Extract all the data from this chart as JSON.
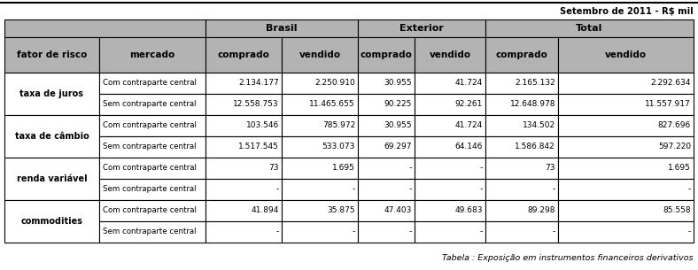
{
  "title_right": "Setembro de 2011 - RⓈ mil",
  "title_right2": "Setembro de 2011 - R$ mil",
  "caption": "Tabela : Exposição em instrumentos financeiros derivativos",
  "col1_header": "fator de risco",
  "col2_header": "mercado",
  "sub_col_headers": [
    "comprado",
    "vendido",
    "comprado",
    "vendido",
    "comprado",
    "vendido"
  ],
  "group_headers": [
    "Brasil",
    "Exterior",
    "Total"
  ],
  "rows": [
    {
      "fator": "taxa de juros",
      "sub_rows": [
        {
          "mercado": "Com contraparte central",
          "values": [
            "2.134.177",
            "2.250.910",
            "30.955",
            "41.724",
            "2.165.132",
            "2.292.634"
          ]
        },
        {
          "mercado": "Sem contraparte central",
          "values": [
            "12.558.753",
            "11.465.655",
            "90.225",
            "92.261",
            "12.648.978",
            "11.557.917"
          ]
        }
      ]
    },
    {
      "fator": "taxa de câmbio",
      "sub_rows": [
        {
          "mercado": "Com contraparte central",
          "values": [
            "103.546",
            "785.972",
            "30.955",
            "41.724",
            "134.502",
            "827.696"
          ]
        },
        {
          "mercado": "Sem contraparte central",
          "values": [
            "1.517.545",
            "533.073",
            "69.297",
            "64.146",
            "1.586.842",
            "597.220"
          ]
        }
      ]
    },
    {
      "fator": "renda variável",
      "sub_rows": [
        {
          "mercado": "Com contraparte central",
          "values": [
            "73",
            "1.695",
            "-",
            "-",
            "73",
            "1.695"
          ]
        },
        {
          "mercado": "Sem contraparte central",
          "values": [
            "-",
            "-",
            "-",
            "-",
            "-",
            "-"
          ]
        }
      ]
    },
    {
      "fator": "commodities",
      "sub_rows": [
        {
          "mercado": "Com contraparte central",
          "values": [
            "41.894",
            "35.875",
            "47.403",
            "49.683",
            "89.298",
            "85.558"
          ]
        },
        {
          "mercado": "Sem contraparte central",
          "values": [
            "-",
            "-",
            "-",
            "-",
            "-",
            "-"
          ]
        }
      ]
    }
  ],
  "header_bg": "#b3b3b3",
  "border_color": "#000000",
  "fig_w": 7.88,
  "fig_h": 3.05,
  "dpi": 100
}
